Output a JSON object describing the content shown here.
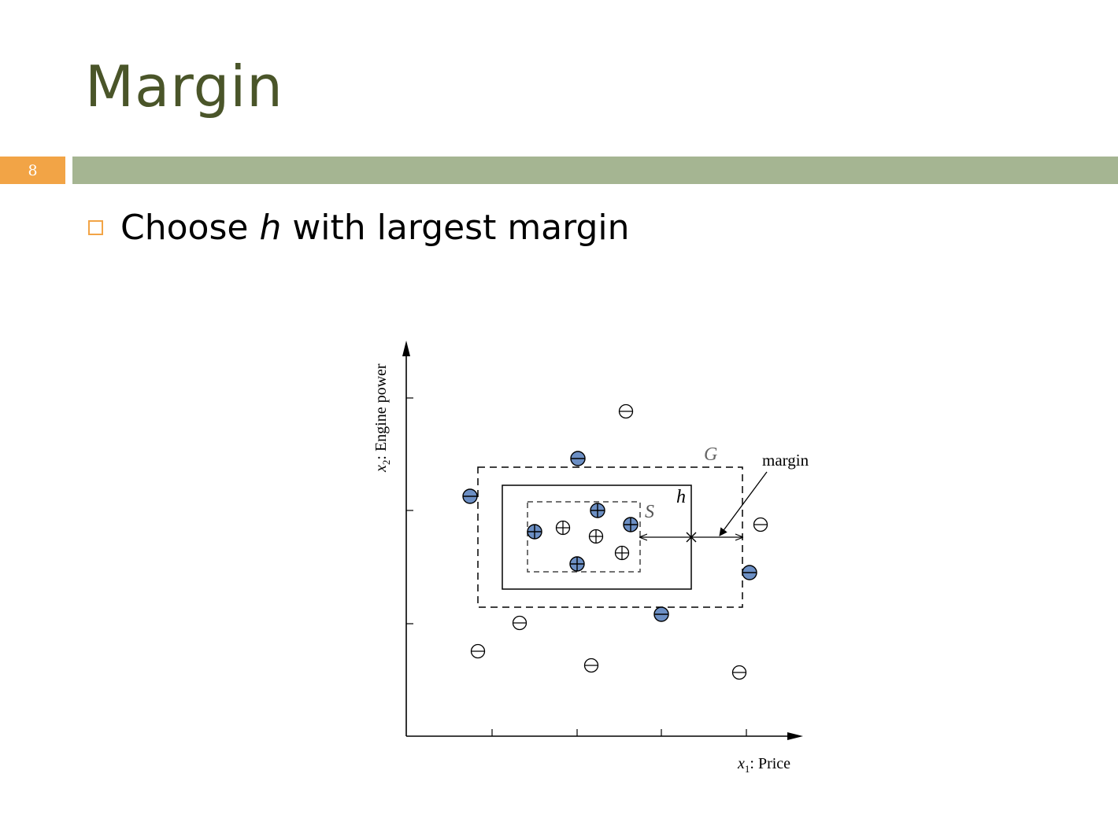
{
  "slide": {
    "title": "Margin",
    "number": "8",
    "bullet": {
      "before": "Choose ",
      "italic": "h",
      "after": " with largest margin"
    }
  },
  "diagram": {
    "labels": {
      "y_axis_var": "x",
      "y_axis_sub": "2",
      "y_axis_text": ": Engine power",
      "x_axis_var": "x",
      "x_axis_sub": "1",
      "x_axis_text": ": Price",
      "G": "G",
      "h": "h",
      "S": "S",
      "margin": "margin"
    },
    "colors": {
      "filled_point": "#6c8fc4",
      "title": "#4a5529",
      "accent": "#f2a446",
      "band": "#a5b592"
    }
  }
}
